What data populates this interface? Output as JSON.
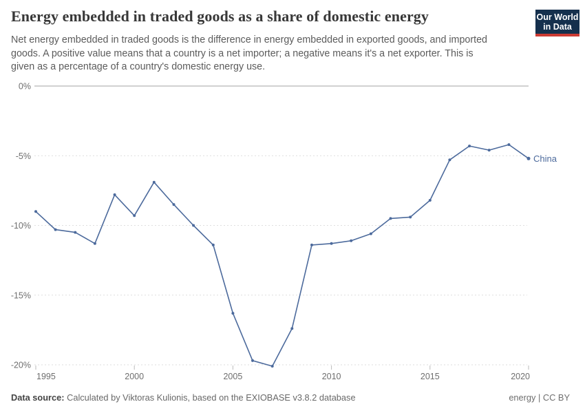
{
  "header": {
    "title": "Energy embedded in traded goods as a share of domestic energy",
    "subtitle_lines": [
      "Net energy embedded in traded goods is the difference in energy embedded in exported goods, and imported",
      "goods. A positive value means that a country is a net importer; a negative means it's a net exporter. This is",
      "given as a percentage of a country's domestic energy use."
    ],
    "logo": {
      "line1": "Our World",
      "line2": "in Data"
    }
  },
  "chart_data": {
    "type": "line",
    "title": "Energy embedded in traded goods as a share of domestic energy",
    "x": [
      1995,
      1996,
      1997,
      1998,
      1999,
      2000,
      2001,
      2002,
      2003,
      2004,
      2005,
      2006,
      2007,
      2008,
      2009,
      2010,
      2011,
      2012,
      2013,
      2014,
      2015,
      2016,
      2017,
      2018,
      2019,
      2020
    ],
    "series": [
      {
        "name": "China",
        "color": "#4C6A9C",
        "values": [
          -9.0,
          -10.3,
          -10.5,
          -11.3,
          -7.8,
          -9.3,
          -6.9,
          -8.5,
          -10.0,
          -11.4,
          -16.3,
          -19.7,
          -20.1,
          -17.4,
          -11.4,
          -11.3,
          -11.1,
          -10.6,
          -9.5,
          -9.4,
          -8.2,
          -5.3,
          -4.3,
          -4.6,
          -4.2,
          -5.2
        ]
      }
    ],
    "xlabel": "",
    "ylabel": "",
    "xlim": [
      1995,
      2020
    ],
    "ylim": [
      -20.5,
      0
    ],
    "xticks": [
      1995,
      2000,
      2005,
      2010,
      2015,
      2020
    ],
    "yticks": [
      0,
      -5,
      -10,
      -15,
      -20
    ],
    "ytick_suffix": "%",
    "grid": "horizontal-dashed",
    "legend_position": "end-of-line"
  },
  "footer": {
    "source_label": "Data source:",
    "source_text": " Calculated by Viktoras Kulionis, based on the EXIOBASE v3.8.2 database",
    "right_text": "energy | CC BY"
  },
  "colors": {
    "series": "#4C6A9C",
    "grid": "#dedede",
    "zero_line": "#a3a3a3",
    "tick": "#bbbbbb",
    "tick_label": "#6e6e6e",
    "title": "#383838",
    "subtitle": "#5b5b5b",
    "logo_bg": "#15304d",
    "logo_red": "#cc3b33"
  }
}
